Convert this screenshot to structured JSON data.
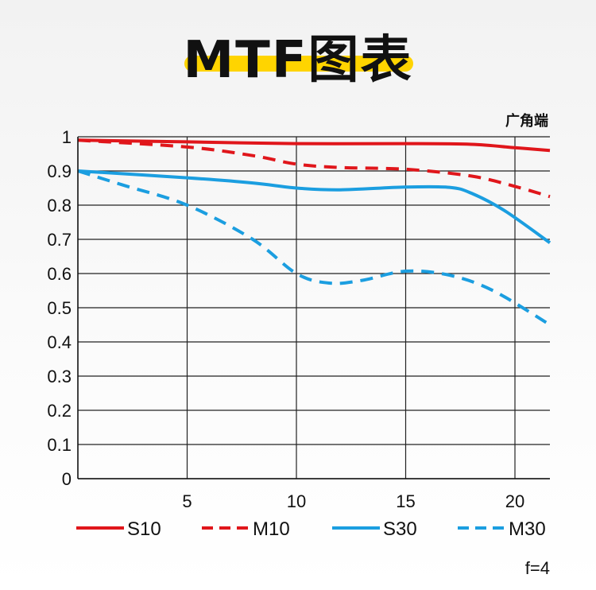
{
  "title": "MTF图表",
  "colors": {
    "red": "#e0161b",
    "blue": "#1b9ee0",
    "highlight": "#ffd400"
  },
  "chart_data": {
    "type": "line",
    "corner_label": "广角端",
    "note": "f=4",
    "x_ticks": [
      "5",
      "10",
      "15",
      "20"
    ],
    "x_tick_values": [
      5,
      10,
      15,
      20
    ],
    "y_ticks": [
      "1",
      "0.9",
      "0.8",
      "0.7",
      "0.6",
      "0.5",
      "0.4",
      "0.3",
      "0.2",
      "0.1",
      "0"
    ],
    "y_tick_values": [
      1,
      0.9,
      0.8,
      0.7,
      0.6,
      0.5,
      0.4,
      0.3,
      0.2,
      0.1,
      0
    ],
    "xlim": [
      0,
      21.6
    ],
    "ylim": [
      0,
      1
    ],
    "grid": true,
    "legend_position": "bottom",
    "series": [
      {
        "name": "S10",
        "color": "#e0161b",
        "style": "solid",
        "points": [
          [
            0,
            0.99
          ],
          [
            5,
            0.985
          ],
          [
            10,
            0.98
          ],
          [
            15,
            0.98
          ],
          [
            18,
            0.978
          ],
          [
            20,
            0.968
          ],
          [
            21.6,
            0.96
          ]
        ]
      },
      {
        "name": "M10",
        "color": "#e0161b",
        "style": "dashed",
        "points": [
          [
            0,
            0.99
          ],
          [
            5,
            0.97
          ],
          [
            8,
            0.945
          ],
          [
            10,
            0.92
          ],
          [
            12,
            0.91
          ],
          [
            15,
            0.905
          ],
          [
            18,
            0.885
          ],
          [
            20,
            0.855
          ],
          [
            21.6,
            0.825
          ]
        ]
      },
      {
        "name": "S30",
        "color": "#1b9ee0",
        "style": "solid",
        "points": [
          [
            0,
            0.9
          ],
          [
            5,
            0.88
          ],
          [
            8,
            0.865
          ],
          [
            10,
            0.85
          ],
          [
            12,
            0.845
          ],
          [
            15,
            0.853
          ],
          [
            17,
            0.852
          ],
          [
            18,
            0.835
          ],
          [
            19.5,
            0.785
          ],
          [
            21.6,
            0.69
          ]
        ]
      },
      {
        "name": "M30",
        "color": "#1b9ee0",
        "style": "dashed",
        "points": [
          [
            0,
            0.9
          ],
          [
            2,
            0.86
          ],
          [
            5,
            0.8
          ],
          [
            8,
            0.7
          ],
          [
            10,
            0.6
          ],
          [
            11.5,
            0.572
          ],
          [
            13,
            0.58
          ],
          [
            15,
            0.607
          ],
          [
            17,
            0.595
          ],
          [
            19,
            0.55
          ],
          [
            21.6,
            0.45
          ]
        ]
      }
    ]
  }
}
